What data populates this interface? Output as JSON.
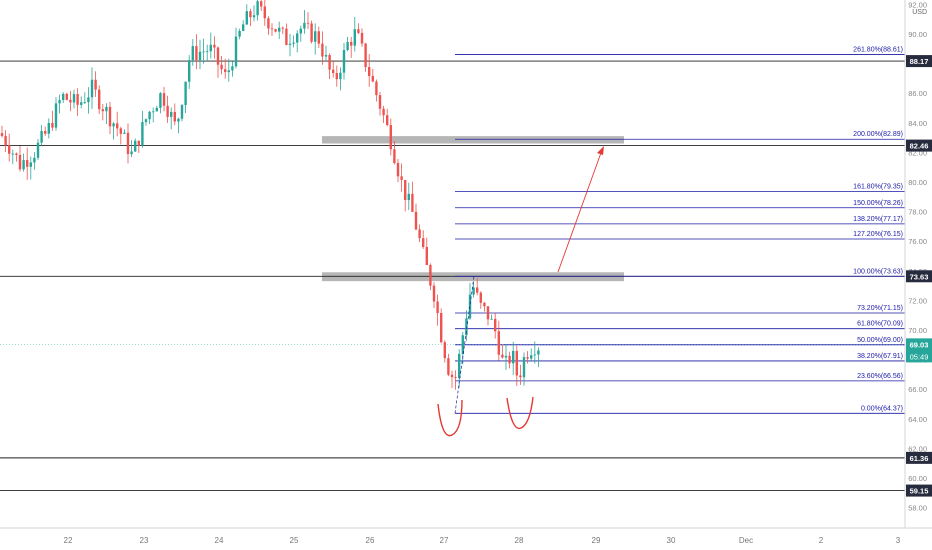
{
  "chart_data": {
    "type": "candlestick",
    "currency": "USD",
    "y_ticks": [
      58.0,
      60.0,
      62.0,
      64.0,
      66.0,
      68.0,
      70.0,
      72.0,
      74.0,
      76.0,
      78.0,
      80.0,
      82.0,
      84.0,
      86.0,
      88.0,
      90.0,
      92.0
    ],
    "x_labels": [
      "22",
      "23",
      "24",
      "25",
      "26",
      "27",
      "28",
      "29",
      "30",
      "Dec",
      "2",
      "3"
    ],
    "horizontal_levels": [
      {
        "price": 88.17,
        "label": "88.17"
      },
      {
        "price": 82.46,
        "label": "82.46"
      },
      {
        "price": 73.63,
        "label": "73.63"
      },
      {
        "price": 61.36,
        "label": "61.36"
      },
      {
        "price": 59.15,
        "label": "59.15"
      }
    ],
    "current_price": {
      "price": 69.03,
      "label": "69.03",
      "countdown": "05:49"
    },
    "fibonacci": [
      {
        "label": "261.80%(88.61)",
        "price": 88.61
      },
      {
        "label": "200.00%(82.89)",
        "price": 82.89
      },
      {
        "label": "161.80%(79.35)",
        "price": 79.35
      },
      {
        "label": "150.00%(78.26)",
        "price": 78.26
      },
      {
        "label": "138.20%(77.17)",
        "price": 77.17
      },
      {
        "label": "127.20%(76.15)",
        "price": 76.15
      },
      {
        "label": "100.00%(73.63)",
        "price": 73.63
      },
      {
        "label": "73.20%(71.15)",
        "price": 71.15
      },
      {
        "label": "61.80%(70.09)",
        "price": 70.09
      },
      {
        "label": "50.00%(69.00)",
        "price": 69.0
      },
      {
        "label": "38.20%(67.91)",
        "price": 67.91
      },
      {
        "label": "23.60%(66.56)",
        "price": 66.56
      },
      {
        "label": "0.00%(64.37)",
        "price": 64.37
      }
    ],
    "zones": [
      {
        "price_from": 82.6,
        "price_to": 83.1
      },
      {
        "price_from": 73.3,
        "price_to": 73.9
      }
    ],
    "colors": {
      "up": "#26a69a",
      "down": "#ef5350",
      "fib": "#1a1aa6",
      "level": "#222222",
      "zone": "#9e9e9e",
      "annotation": "#e53935",
      "current": "#26a69a",
      "axis_text": "#888888"
    }
  }
}
